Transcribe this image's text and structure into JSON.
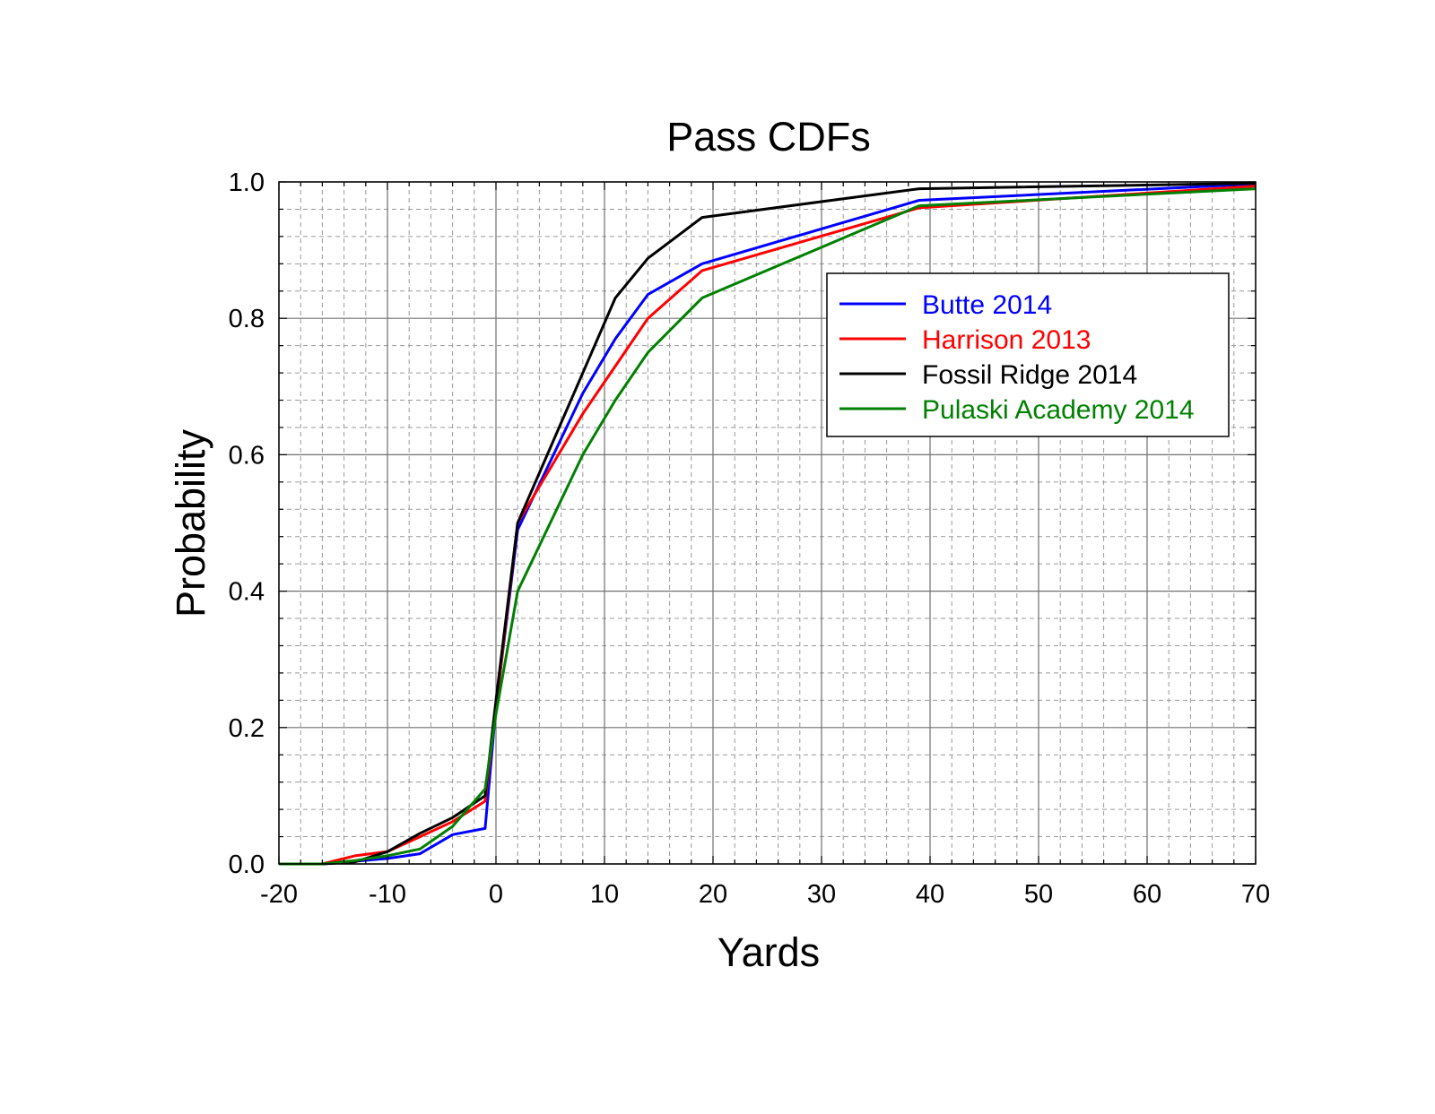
{
  "chart_data": {
    "type": "line",
    "title": "Pass CDFs",
    "xlabel": "Yards",
    "ylabel": "Probability",
    "xlim": [
      -20,
      70
    ],
    "ylim": [
      0,
      1
    ],
    "xticks": [
      -20,
      -10,
      0,
      10,
      20,
      30,
      40,
      50,
      60,
      70
    ],
    "xtick_labels": [
      "-20",
      "-10",
      "0",
      "10",
      "20",
      "30",
      "40",
      "50",
      "60",
      "70"
    ],
    "yticks": [
      0,
      0.2,
      0.4,
      0.6,
      0.8,
      1.0
    ],
    "ytick_labels": [
      "0.0",
      "0.2",
      "0.4",
      "0.6",
      "0.8",
      "1.0"
    ],
    "grid": true,
    "legend_position": "top-right",
    "series": [
      {
        "name": "Butte 2014",
        "color": "#0000ff",
        "points": [
          [
            -20,
            0.0
          ],
          [
            -16,
            0.0
          ],
          [
            -13,
            0.004
          ],
          [
            -10,
            0.008
          ],
          [
            -7,
            0.015
          ],
          [
            -4,
            0.043
          ],
          [
            -1,
            0.052
          ],
          [
            0,
            0.23
          ],
          [
            2,
            0.49
          ],
          [
            8,
            0.69
          ],
          [
            11,
            0.77
          ],
          [
            14,
            0.835
          ],
          [
            19,
            0.88
          ],
          [
            39,
            0.973
          ],
          [
            70,
            0.997
          ]
        ]
      },
      {
        "name": "Harrison 2013",
        "color": "#ff0000",
        "points": [
          [
            -20,
            0.0
          ],
          [
            -16,
            0.0
          ],
          [
            -13,
            0.012
          ],
          [
            -10,
            0.018
          ],
          [
            -7,
            0.04
          ],
          [
            -4,
            0.062
          ],
          [
            -1,
            0.092
          ],
          [
            0,
            0.23
          ],
          [
            2,
            0.5
          ],
          [
            8,
            0.66
          ],
          [
            11,
            0.73
          ],
          [
            14,
            0.8
          ],
          [
            19,
            0.87
          ],
          [
            39,
            0.962
          ],
          [
            70,
            0.994
          ]
        ]
      },
      {
        "name": "Fossil Ridge 2014",
        "color": "#000000",
        "points": [
          [
            -20,
            0.0
          ],
          [
            -16,
            0.0
          ],
          [
            -13,
            0.003
          ],
          [
            -10,
            0.018
          ],
          [
            -7,
            0.045
          ],
          [
            -4,
            0.068
          ],
          [
            -1,
            0.1
          ],
          [
            0,
            0.24
          ],
          [
            2,
            0.5
          ],
          [
            8,
            0.72
          ],
          [
            11,
            0.83
          ],
          [
            14,
            0.888
          ],
          [
            19,
            0.948
          ],
          [
            39,
            0.99
          ],
          [
            70,
            0.998
          ]
        ]
      },
      {
        "name": "Pulaski Academy 2014",
        "color": "#008000",
        "points": [
          [
            -20,
            0.0
          ],
          [
            -16,
            0.0
          ],
          [
            -13,
            0.005
          ],
          [
            -10,
            0.012
          ],
          [
            -7,
            0.022
          ],
          [
            -4,
            0.055
          ],
          [
            -1,
            0.11
          ],
          [
            0,
            0.22
          ],
          [
            2,
            0.4
          ],
          [
            8,
            0.6
          ],
          [
            11,
            0.68
          ],
          [
            14,
            0.75
          ],
          [
            19,
            0.83
          ],
          [
            39,
            0.965
          ],
          [
            70,
            0.99
          ]
        ]
      }
    ]
  }
}
